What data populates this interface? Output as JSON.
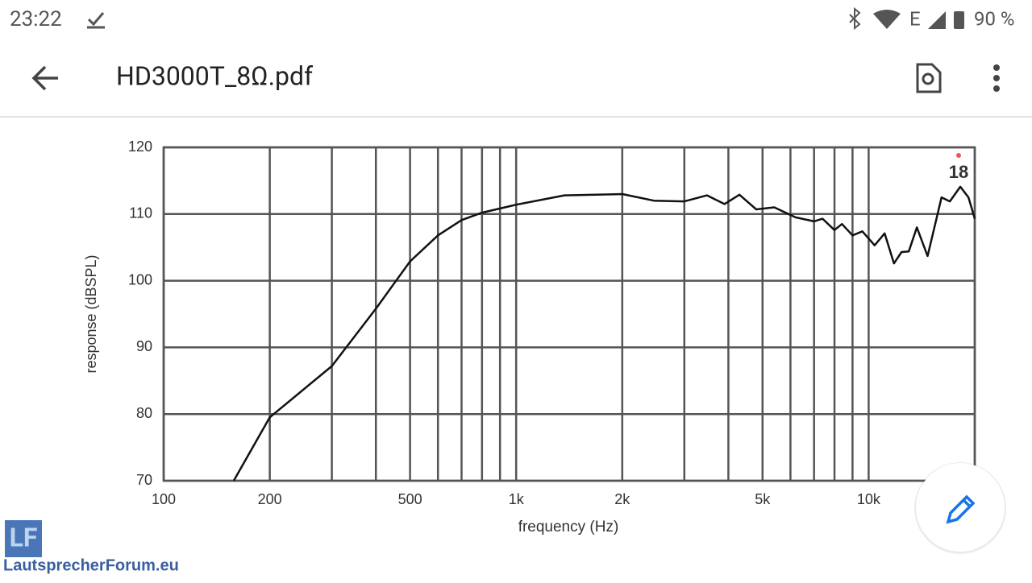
{
  "status_bar": {
    "time": "23:22",
    "network": "E",
    "battery": "90 %"
  },
  "app_bar": {
    "title": "HD3000T_8Ω.pdf"
  },
  "watermark": {
    "logo": "LF",
    "site": "LautsprecherForum.eu"
  },
  "chart_data": {
    "type": "line",
    "x_label": "frequency (Hz)",
    "y_label": "response (dBSPL)",
    "annotation": "18",
    "log_x": true,
    "grid": true,
    "color": "#111111",
    "xlim": [
      100,
      20000
    ],
    "ylim": [
      70,
      120
    ],
    "xticks": [
      100,
      200,
      500,
      {
        "value": 1000,
        "label": "1k"
      },
      {
        "value": 2000,
        "label": "2k"
      },
      {
        "value": 5000,
        "label": "5k"
      },
      {
        "value": 10000,
        "label": "10k"
      }
    ],
    "xgrid": [
      300,
      400,
      600,
      700,
      800,
      900,
      3000,
      4000,
      6000,
      7000,
      8000,
      9000,
      20000
    ],
    "yticks": [
      70,
      80,
      90,
      100,
      110,
      120
    ],
    "x": [
      158,
      200,
      300,
      400,
      500,
      600,
      700,
      800,
      1000,
      1370,
      2000,
      2460,
      3000,
      3480,
      3900,
      4300,
      4800,
      5400,
      6200,
      7000,
      7400,
      8000,
      8400,
      9000,
      9600,
      10400,
      11100,
      11800,
      12400,
      13000,
      13700,
      14700,
      16100,
      17000,
      18200,
      19200,
      20000
    ],
    "values": [
      70,
      79.5,
      87.2,
      95.8,
      102.9,
      106.8,
      109.1,
      110.2,
      111.4,
      112.8,
      113,
      112,
      111.9,
      112.8,
      111.5,
      112.9,
      110.7,
      111,
      109.5,
      108.9,
      109.3,
      107.6,
      108.5,
      106.8,
      107.4,
      105.3,
      107.1,
      102.6,
      104.3,
      104.4,
      108,
      103.7,
      112.5,
      111.9,
      114.1,
      112.5,
      109.3
    ]
  }
}
